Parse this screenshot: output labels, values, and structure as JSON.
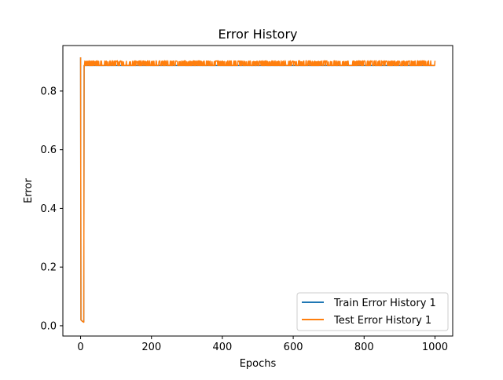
{
  "chart_data": {
    "type": "line",
    "title": "Error History",
    "xlabel": "Epochs",
    "ylabel": "Error",
    "xlim": [
      -50,
      1050
    ],
    "ylim": [
      -0.035,
      0.955
    ],
    "xticks": [
      0,
      200,
      400,
      600,
      800,
      1000
    ],
    "yticks": [
      0.0,
      0.2,
      0.4,
      0.6,
      0.8
    ],
    "xtick_labels": [
      "0",
      "200",
      "400",
      "600",
      "800",
      "1000"
    ],
    "ytick_labels": [
      "0.0",
      "0.2",
      "0.4",
      "0.6",
      "0.8"
    ],
    "grid": false,
    "legend_position": "lower-right",
    "epochs": 1000,
    "series": [
      {
        "name": "Train Error History 1",
        "color": "#1f77b4",
        "shape": "initial point ~0.915 at epoch 0, drops to ~0.02 at epochs 1-9, then constant ~0.887 to epoch 1000 (upper band ~0.903)",
        "points": [
          [
            0,
            0.915
          ],
          [
            1,
            0.02
          ],
          [
            5,
            0.015
          ],
          [
            9,
            0.013
          ],
          [
            10,
            0.887
          ],
          [
            1000,
            0.887
          ]
        ]
      },
      {
        "name": "Test Error History 1",
        "color": "#ff7f0e",
        "shape": "same drop as train, then oscillates between ~0.887 and ~0.903 until epoch 1000",
        "points": [
          [
            0,
            0.915
          ],
          [
            1,
            0.02
          ],
          [
            5,
            0.015
          ],
          [
            9,
            0.012
          ],
          [
            10,
            0.887
          ],
          [
            1000,
            0.887
          ]
        ],
        "low": 0.887,
        "high": 0.903
      }
    ]
  }
}
